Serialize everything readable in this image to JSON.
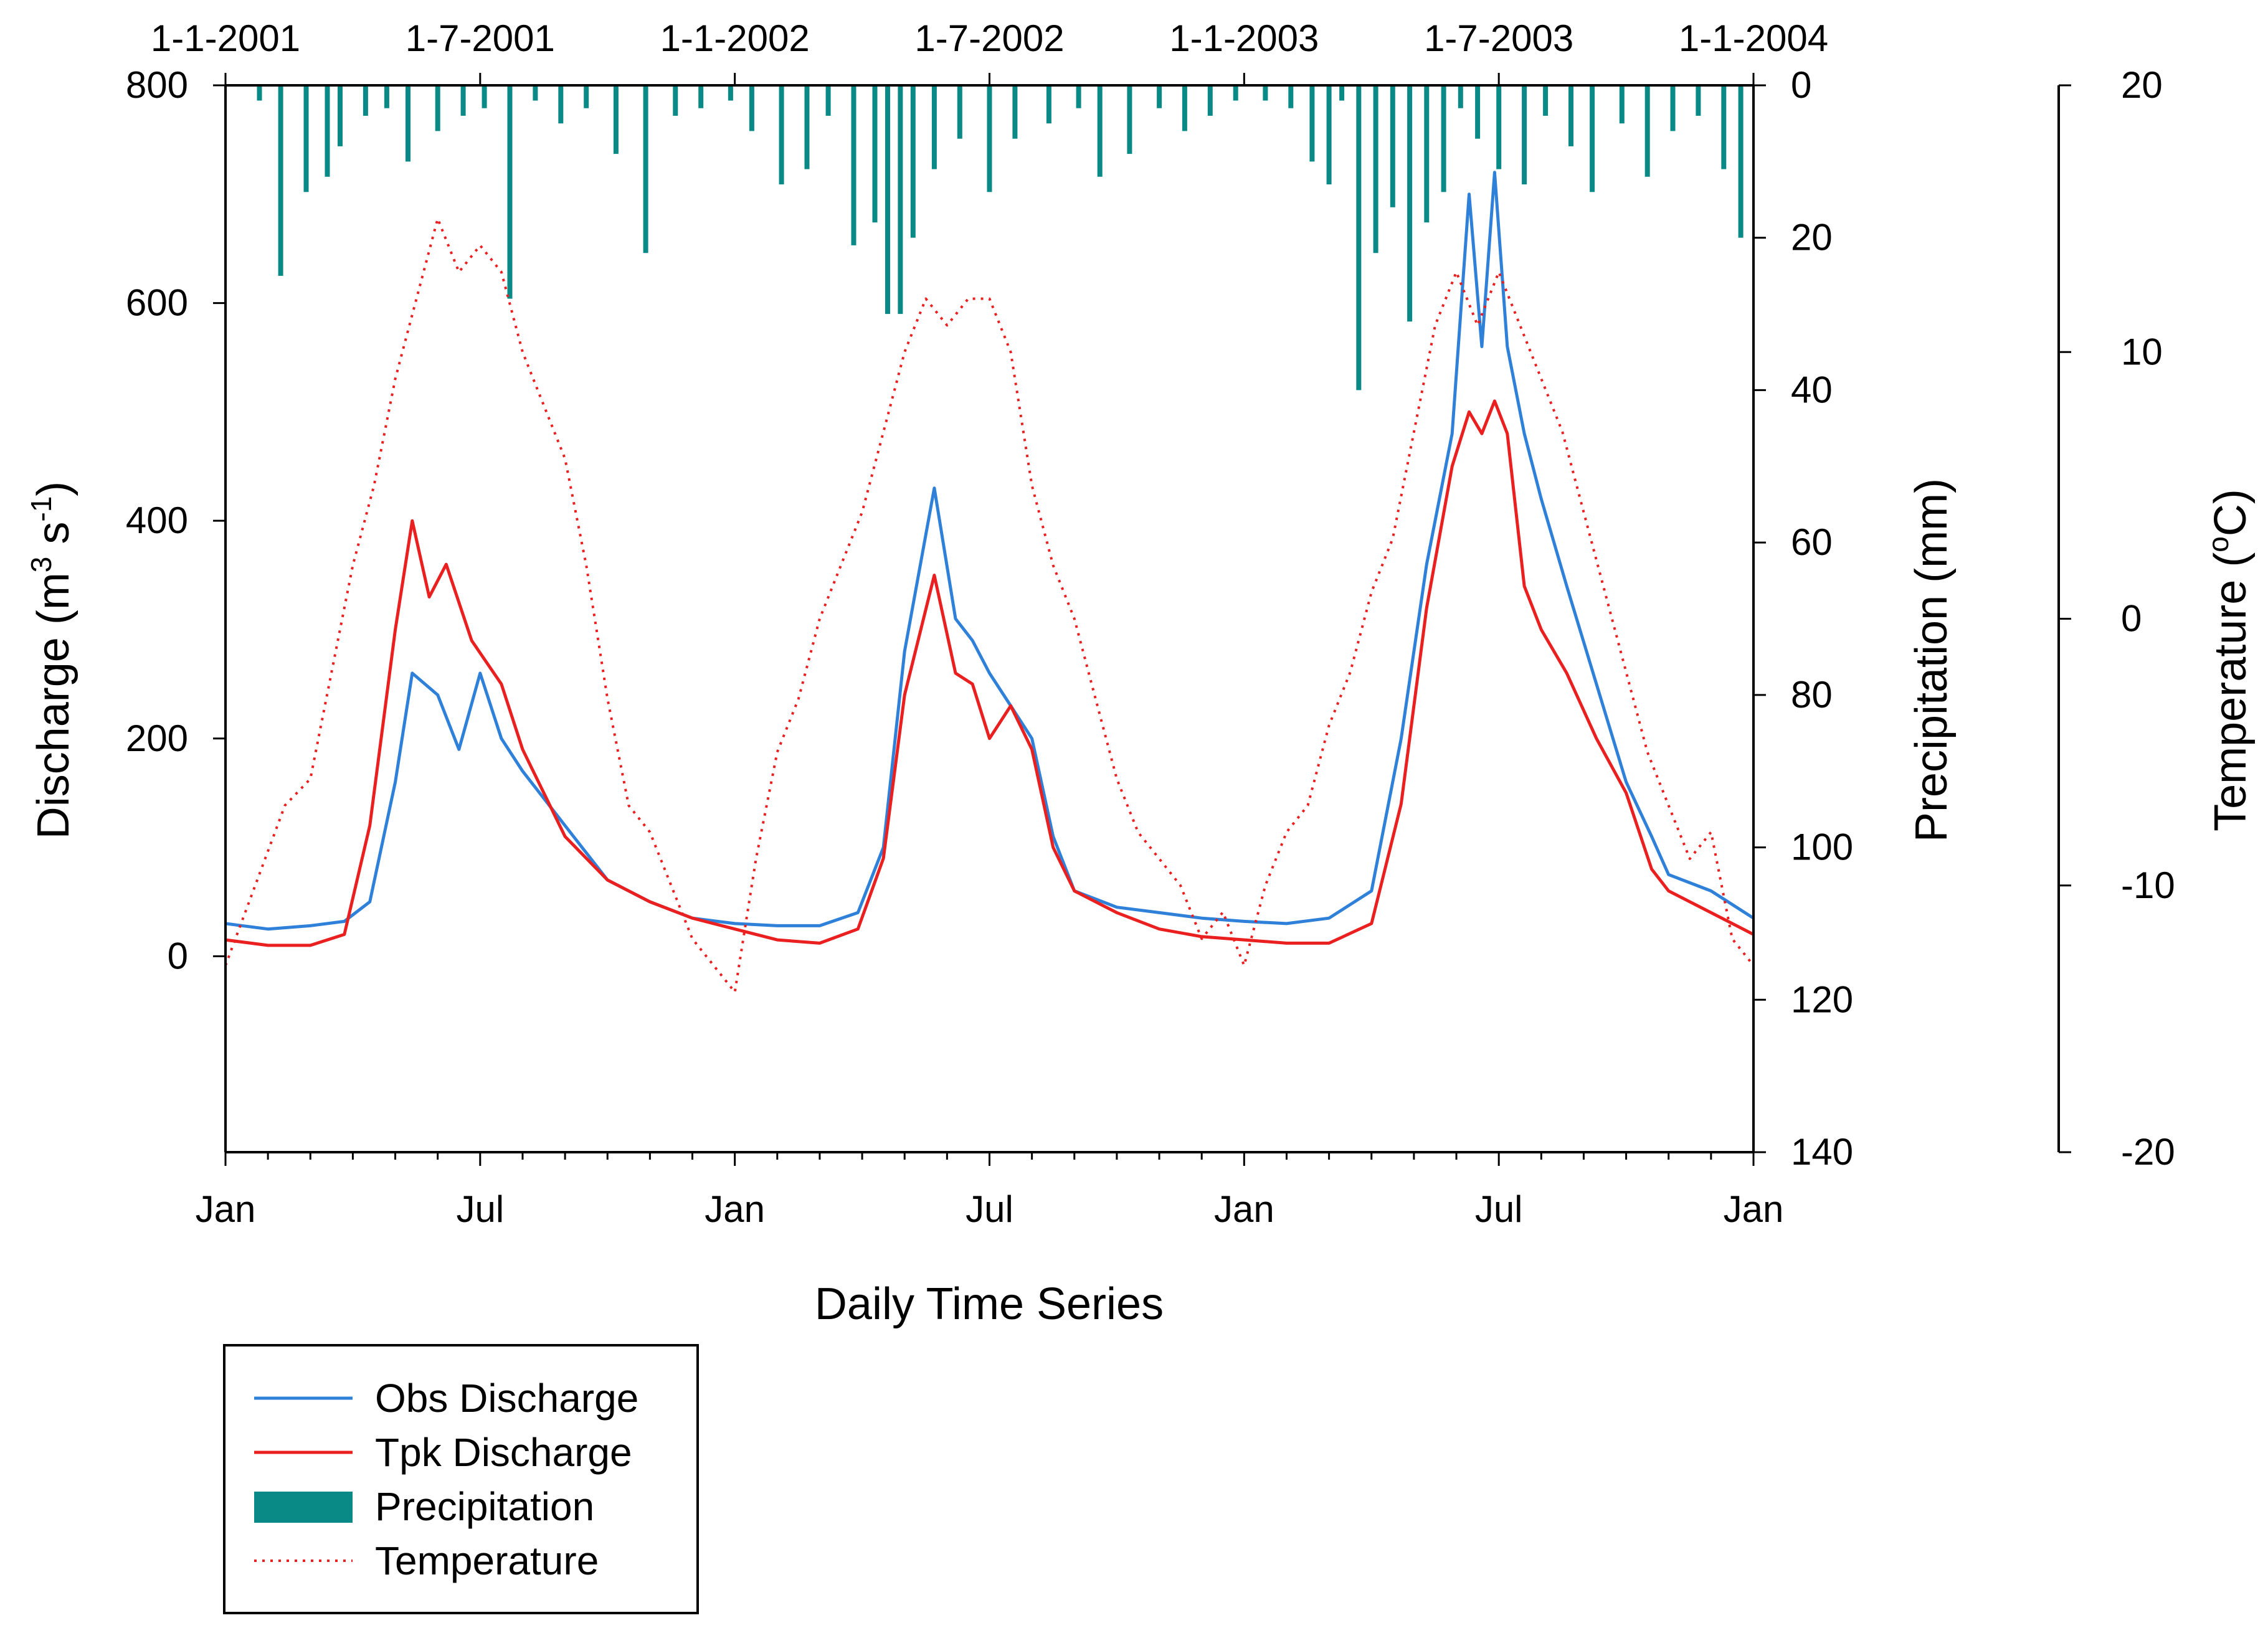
{
  "chart_data": {
    "type": "line",
    "title": "",
    "xlabel": "Daily Time Series",
    "x_bottom_ticks": [
      "Jan",
      "Jul",
      "Jan",
      "Jul",
      "Jan",
      "Jul",
      "Jan"
    ],
    "x_top_ticks": [
      "1-1-2001",
      "1-7-2001",
      "1-1-2002",
      "1-7-2002",
      "1-1-2003",
      "1-7-2003",
      "1-1-2004"
    ],
    "x_range_months": [
      0,
      36
    ],
    "axes": {
      "discharge": {
        "label_main": "Discharge (m",
        "label_sup1": "3",
        "label_mid": " s",
        "label_sup2": "-1",
        "label_end": ")",
        "range": [
          -180,
          800
        ],
        "ticks": [
          "0",
          "200",
          "400",
          "600",
          "800"
        ],
        "tick_values": [
          0,
          200,
          400,
          600,
          800
        ]
      },
      "precipitation": {
        "label": "Precipitation (mm)",
        "range": [
          0,
          140
        ],
        "inverted": true,
        "ticks": [
          "0",
          "20",
          "40",
          "60",
          "80",
          "100",
          "120",
          "140"
        ],
        "tick_values": [
          0,
          20,
          40,
          60,
          80,
          100,
          120,
          140
        ]
      },
      "temperature": {
        "label_main": "Temperature (",
        "label_sup": "o",
        "label_end": "C)",
        "range": [
          -20,
          20
        ],
        "ticks": [
          "20",
          "10",
          "0",
          "-10",
          "-20"
        ],
        "tick_values": [
          20,
          10,
          0,
          -10,
          -20
        ]
      }
    },
    "legend": {
      "placement": "bottom-left",
      "entries": [
        "Obs Discharge",
        "Tpk Discharge",
        "Precipitation",
        "Temperature"
      ]
    },
    "series": [
      {
        "name": "Obs Discharge",
        "axis": "discharge",
        "color": "#2f80d8",
        "style": "solid",
        "x_months": [
          0,
          1,
          2,
          2.8,
          3.4,
          4,
          4.4,
          5,
          5.5,
          6,
          6.5,
          7,
          8,
          9,
          10,
          11,
          12,
          13,
          14,
          14.9,
          15.5,
          16,
          16.7,
          17.2,
          17.6,
          18,
          18.5,
          19,
          19.5,
          20,
          21,
          22,
          23,
          24,
          25,
          26,
          27,
          27.7,
          28.3,
          28.9,
          29.3,
          29.6,
          29.9,
          30.2,
          30.6,
          31,
          31.6,
          32.3,
          33,
          33.6,
          34,
          35,
          36
        ],
        "values": [
          30,
          25,
          28,
          32,
          50,
          160,
          260,
          240,
          190,
          260,
          200,
          170,
          120,
          70,
          50,
          35,
          30,
          28,
          28,
          40,
          100,
          280,
          430,
          310,
          290,
          260,
          230,
          200,
          110,
          60,
          45,
          40,
          35,
          32,
          30,
          35,
          60,
          200,
          360,
          480,
          700,
          560,
          720,
          560,
          480,
          420,
          340,
          250,
          160,
          110,
          75,
          60,
          35
        ]
      },
      {
        "name": "Tpk Discharge",
        "axis": "discharge",
        "color": "#ea2020",
        "style": "solid",
        "x_months": [
          0,
          1,
          2,
          2.8,
          3.4,
          4,
          4.4,
          4.8,
          5.2,
          5.8,
          6.5,
          7,
          8,
          9,
          10,
          11,
          12,
          13,
          14,
          14.9,
          15.5,
          16,
          16.7,
          17.2,
          17.6,
          18,
          18.5,
          19,
          19.5,
          20,
          21,
          22,
          23,
          24,
          25,
          26,
          27,
          27.7,
          28.3,
          28.9,
          29.3,
          29.6,
          29.9,
          30.2,
          30.6,
          31,
          31.6,
          32.3,
          33,
          33.6,
          34,
          35,
          36
        ],
        "values": [
          15,
          10,
          10,
          20,
          120,
          300,
          400,
          330,
          360,
          290,
          250,
          190,
          110,
          70,
          50,
          35,
          25,
          15,
          12,
          25,
          90,
          240,
          350,
          260,
          250,
          200,
          230,
          190,
          100,
          60,
          40,
          25,
          18,
          15,
          12,
          12,
          30,
          140,
          320,
          450,
          500,
          480,
          510,
          480,
          340,
          300,
          260,
          200,
          150,
          80,
          60,
          40,
          20
        ]
      },
      {
        "name": "Temperature",
        "axis": "temperature",
        "color": "#ea2020",
        "style": "dotted",
        "x_months": [
          0,
          0.7,
          1.4,
          2,
          2.5,
          3,
          3.5,
          4,
          4.5,
          5,
          5.5,
          6,
          6.5,
          7,
          7.5,
          8,
          8.5,
          9,
          9.5,
          10,
          10.5,
          11,
          11.5,
          12,
          12.5,
          13,
          13.5,
          14,
          14.5,
          15,
          15.5,
          16,
          16.5,
          17,
          17.5,
          18,
          18.5,
          19,
          19.5,
          20,
          20.5,
          21,
          21.5,
          22,
          22.5,
          23,
          23.5,
          24,
          24.5,
          25,
          25.5,
          26,
          26.5,
          27,
          27.5,
          28,
          28.5,
          29,
          29.5,
          30,
          30.5,
          31,
          31.5,
          32,
          32.5,
          33,
          33.5,
          34,
          34.5,
          35,
          35.5,
          36
        ],
        "values": [
          -13,
          -10,
          -7,
          -6,
          -2,
          2,
          5,
          9,
          12,
          15,
          13,
          14,
          13,
          10,
          8,
          6,
          2,
          -3,
          -7,
          -8,
          -10,
          -12,
          -13,
          -14,
          -9,
          -5,
          -3,
          0,
          2,
          4,
          7,
          10,
          12,
          11,
          12,
          12,
          10,
          5,
          2,
          0,
          -3,
          -6,
          -8,
          -9,
          -10,
          -12,
          -11,
          -13,
          -10,
          -8,
          -7,
          -4,
          -2,
          1,
          3,
          7,
          11,
          13,
          11,
          13,
          11,
          9,
          7,
          4,
          1,
          -2,
          -5,
          -7,
          -9,
          -8,
          -12,
          -13
        ]
      }
    ],
    "precipitation_bars": {
      "name": "Precipitation",
      "axis": "precipitation",
      "color": "#0a8a86",
      "x_months": [
        0.8,
        1.3,
        1.9,
        2.4,
        2.7,
        3.3,
        3.8,
        4.3,
        5.0,
        5.6,
        6.1,
        6.7,
        7.3,
        7.9,
        8.5,
        9.2,
        9.9,
        10.6,
        11.2,
        11.9,
        12.4,
        13.1,
        13.7,
        14.2,
        14.8,
        15.3,
        15.6,
        15.9,
        16.2,
        16.7,
        17.3,
        18.0,
        18.6,
        19.4,
        20.1,
        20.6,
        21.3,
        22.0,
        22.6,
        23.2,
        23.8,
        24.5,
        25.1,
        25.6,
        26.0,
        26.3,
        26.7,
        27.1,
        27.5,
        27.9,
        28.3,
        28.7,
        29.1,
        29.5,
        30.0,
        30.6,
        31.1,
        31.7,
        32.2,
        32.9,
        33.5,
        34.1,
        34.7,
        35.3,
        35.7
      ],
      "values": [
        2,
        25,
        14,
        12,
        8,
        4,
        3,
        10,
        6,
        4,
        3,
        28,
        2,
        5,
        3,
        9,
        22,
        4,
        3,
        2,
        6,
        13,
        11,
        4,
        21,
        18,
        30,
        30,
        20,
        11,
        7,
        14,
        7,
        5,
        3,
        12,
        9,
        3,
        6,
        4,
        2,
        2,
        3,
        10,
        13,
        2,
        40,
        22,
        16,
        31,
        18,
        14,
        3,
        7,
        11,
        13,
        4,
        8,
        14,
        5,
        12,
        6,
        4,
        11,
        20
      ]
    }
  }
}
